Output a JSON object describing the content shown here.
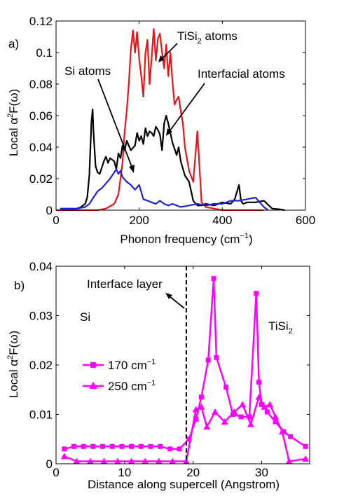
{
  "chart_data": [
    {
      "panel_label": "a)",
      "type": "line",
      "xlabel": "Phonon frequency (cm",
      "xlabel_sup": "−1",
      "xlabel_end": ")",
      "ylabel": "Local α",
      "ylabel_sup": "2",
      "ylabel_end": "F(ω)",
      "xlim": [
        0,
        600
      ],
      "ylim": [
        0,
        0.12
      ],
      "xticks": [
        "0",
        "200",
        "400",
        "600"
      ],
      "yticks": [
        "0",
        "0.02",
        "0.04",
        "0.06",
        "0.08",
        "0.1",
        "0.12"
      ],
      "series": [
        {
          "color": "#e8141a",
          "x": [
            0,
            20,
            40,
            60,
            80,
            100,
            120,
            140,
            150,
            160,
            165,
            170,
            175,
            180,
            185,
            190,
            195,
            200,
            205,
            210,
            215,
            220,
            225,
            230,
            235,
            240,
            245,
            250,
            255,
            260,
            265,
            270,
            275,
            280,
            285,
            290,
            295,
            300,
            305,
            310,
            320,
            330,
            340,
            350,
            360,
            380,
            400,
            420,
            440,
            460,
            480,
            500
          ],
          "y": [
            0,
            0,
            0,
            0,
            0,
            0,
            0.001,
            0.004,
            0.01,
            0.03,
            0.05,
            0.063,
            0.08,
            0.102,
            0.114,
            0.1,
            0.113,
            0.096,
            0.085,
            0.072,
            0.1,
            0.108,
            0.08,
            0.097,
            0.115,
            0.095,
            0.109,
            0.112,
            0.1,
            0.09,
            0.105,
            0.085,
            0.1,
            0.082,
            0.067,
            0.07,
            0.072,
            0.063,
            0.055,
            0.04,
            0.025,
            0.018,
            0.05,
            0.005,
            0.002,
            0.001,
            0,
            0,
            0,
            0,
            0,
            0
          ]
        },
        {
          "color": "#000000",
          "x": [
            10,
            30,
            50,
            60,
            70,
            75,
            80,
            85,
            88,
            90,
            95,
            100,
            105,
            110,
            115,
            120,
            125,
            130,
            140,
            145,
            150,
            155,
            160,
            165,
            170,
            180,
            190,
            195,
            200,
            205,
            210,
            215,
            220,
            225,
            230,
            235,
            240,
            245,
            250,
            255,
            260,
            265,
            270,
            275,
            280,
            285,
            290,
            295,
            300,
            310,
            320,
            330,
            340,
            350,
            360,
            380,
            400,
            420,
            430,
            440,
            445,
            450,
            460,
            480,
            500,
            520,
            540,
            550
          ],
          "y": [
            0.001,
            0.001,
            0.001,
            0.002,
            0.004,
            0.008,
            0.022,
            0.055,
            0.064,
            0.05,
            0.028,
            0.024,
            0.023,
            0.027,
            0.031,
            0.034,
            0.03,
            0.033,
            0.031,
            0.026,
            0.036,
            0.033,
            0.041,
            0.038,
            0.044,
            0.038,
            0.041,
            0.049,
            0.044,
            0.047,
            0.042,
            0.052,
            0.047,
            0.05,
            0.049,
            0.047,
            0.053,
            0.051,
            0.048,
            0.038,
            0.055,
            0.06,
            0.055,
            0.049,
            0.043,
            0.039,
            0.035,
            0.04,
            0.031,
            0.022,
            0.018,
            0.006,
            0.003,
            0.003,
            0.004,
            0.003,
            0.005,
            0.004,
            0.007,
            0.016,
            0.006,
            0.004,
            0.005,
            0.005,
            0.006,
            0.001,
            0.0005,
            0
          ]
        },
        {
          "color": "#1f23d6",
          "x": [
            10,
            30,
            50,
            70,
            80,
            90,
            100,
            110,
            120,
            130,
            140,
            145,
            150,
            155,
            160,
            170,
            180,
            190,
            200,
            210,
            220,
            230,
            240,
            250,
            260,
            270,
            280,
            290,
            300,
            320,
            340,
            360,
            380,
            400,
            420,
            440,
            460,
            480,
            490,
            500,
            510
          ],
          "y": [
            0.001,
            0.001,
            0.001,
            0.002,
            0.004,
            0.008,
            0.012,
            0.014,
            0.017,
            0.02,
            0.024,
            0.026,
            0.023,
            0.025,
            0.021,
            0.018,
            0.016,
            0.013,
            0.016,
            0.007,
            0.006,
            0.005,
            0.004,
            0.006,
            0.004,
            0.003,
            0.004,
            0.003,
            0.002,
            0.003,
            0.004,
            0.003,
            0.004,
            0.004,
            0.006,
            0.006,
            0.007,
            0.008,
            0.005,
            0.002,
            0
          ]
        }
      ],
      "annotations": [
        {
          "text": "TiSi",
          "sub": "2",
          "end": " atoms"
        },
        {
          "text": "Si atoms"
        },
        {
          "text": "Interfacial atoms"
        }
      ]
    },
    {
      "panel_label": "b)",
      "type": "line",
      "xlabel": "Distance along supercell (Angstrom)",
      "ylabel": "Local α",
      "ylabel_sup": "2",
      "ylabel_end": "F(ω)",
      "xlim": [
        0,
        37
      ],
      "ylim": [
        0,
        0.04
      ],
      "xticks": [
        "0",
        "10",
        "20",
        "30"
      ],
      "yticks": [
        "0",
        "0.01",
        "0.02",
        "0.03",
        "0.04"
      ],
      "color": "#ff00ff",
      "series": [
        {
          "name": "170 cm",
          "name_sup": "−1",
          "marker": "square",
          "x": [
            1.2,
            2.6,
            4.0,
            5.4,
            6.8,
            8.2,
            9.6,
            11.0,
            12.4,
            13.8,
            15.2,
            16.6,
            18.0,
            19.4,
            20.4,
            21.2,
            22.2,
            23.0,
            23.4,
            24.8,
            25.8,
            27.0,
            28.2,
            29.2,
            29.6,
            30.0,
            30.8,
            32.0,
            33.2,
            34.2,
            36.4
          ],
          "y": [
            0.003,
            0.0035,
            0.0035,
            0.0035,
            0.0035,
            0.0035,
            0.0035,
            0.0035,
            0.0035,
            0.0035,
            0.0035,
            0.003,
            0.003,
            0.005,
            0.009,
            0.0135,
            0.021,
            0.0375,
            0.0215,
            0.0155,
            0.01,
            0.0095,
            0.0095,
            0.0345,
            0.0165,
            0.012,
            0.0105,
            0.0085,
            0.0065,
            0.0055,
            0.0035
          ]
        },
        {
          "name": "250 cm",
          "name_sup": "−1",
          "marker": "triangle",
          "x": [
            1.2,
            3.0,
            5.0,
            7.0,
            9.0,
            11.0,
            13.0,
            15.0,
            17.0,
            19.0,
            20.4,
            21.2,
            22.0,
            23.2,
            24.6,
            26.0,
            27.2,
            28.4,
            29.6,
            30.4,
            31.2,
            32.0,
            33.0,
            34.0,
            36.4
          ],
          "y": [
            0.0015,
            0.0005,
            0.0005,
            0.0005,
            0.0005,
            0.0005,
            0.0005,
            0.0005,
            0.0005,
            0.0005,
            0.011,
            0.0115,
            0.0075,
            0.0105,
            0.0085,
            0.0105,
            0.012,
            0.008,
            0.0135,
            0.0115,
            0.012,
            0.0095,
            0.0065,
            0.0005,
            0.001
          ]
        }
      ],
      "annotations": [
        {
          "text": "Interface layer"
        },
        {
          "text": "Si"
        },
        {
          "text": "TiSi",
          "sub": "2"
        }
      ],
      "interface_x": 19
    }
  ]
}
